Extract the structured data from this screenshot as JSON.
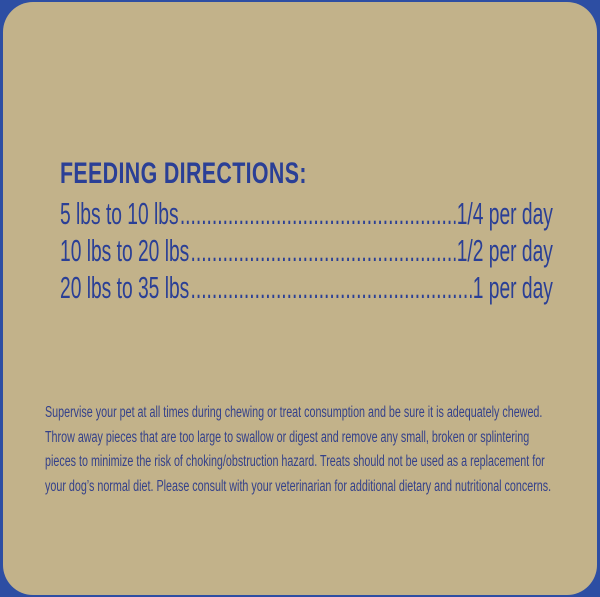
{
  "colors": {
    "border": "#2d4ea3",
    "background": "#c2b28a",
    "text": "#2a3f96"
  },
  "feeding": {
    "title": "FEEDING DIRECTIONS:",
    "rows": [
      {
        "weight": "5 lbs to 10 lbs",
        "amount": "1/4 per day"
      },
      {
        "weight": "10 lbs to 20 lbs",
        "amount": "1/2 per day"
      },
      {
        "weight": "20 lbs to 35 lbs",
        "amount": "1 per day"
      }
    ]
  },
  "warning": {
    "lines": [
      "Supervise your pet at all times during chewing or treat consumption and be sure it is adequately chewed.",
      "Throw away pieces that are too large to swallow or digest and remove any small, broken or splintering",
      "pieces to minimize the risk of choking/obstruction hazard. Treats should not be used as a replacement for",
      "your dog’s normal diet.  Please consult with your veterinarian for additional dietary and nutritional concerns."
    ]
  }
}
